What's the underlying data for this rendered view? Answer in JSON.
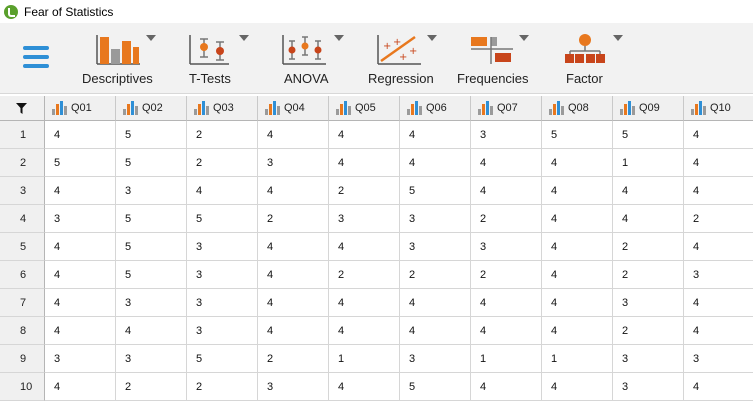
{
  "window": {
    "title": "Fear of Statistics"
  },
  "toolbar": {
    "menu_icon": "hamburger-menu-icon",
    "tools": [
      {
        "label": "Descriptives",
        "icon": "bar-chart-icon"
      },
      {
        "label": "T-Tests",
        "icon": "ttest-icon"
      },
      {
        "label": "ANOVA",
        "icon": "anova-icon"
      },
      {
        "label": "Regression",
        "icon": "regression-icon"
      },
      {
        "label": "Frequencies",
        "icon": "frequencies-icon"
      },
      {
        "label": "Factor",
        "icon": "factor-icon"
      }
    ]
  },
  "colors": {
    "accent_blue": "#2e8fd6",
    "accent_orange": "#e8781e",
    "accent_red": "#c8451b"
  },
  "grid": {
    "filter_icon": "filter-icon",
    "columns": [
      "Q01",
      "Q02",
      "Q03",
      "Q04",
      "Q05",
      "Q06",
      "Q07",
      "Q08",
      "Q09",
      "Q10"
    ],
    "column_type_icon": "nominal-bars-icon",
    "rows": [
      {
        "n": "1",
        "values": [
          "4",
          "5",
          "2",
          "4",
          "4",
          "4",
          "3",
          "5",
          "5",
          "4"
        ]
      },
      {
        "n": "2",
        "values": [
          "5",
          "5",
          "2",
          "3",
          "4",
          "4",
          "4",
          "4",
          "1",
          "4"
        ]
      },
      {
        "n": "3",
        "values": [
          "4",
          "3",
          "4",
          "4",
          "2",
          "5",
          "4",
          "4",
          "4",
          "4"
        ]
      },
      {
        "n": "4",
        "values": [
          "3",
          "5",
          "5",
          "2",
          "3",
          "3",
          "2",
          "4",
          "4",
          "2"
        ]
      },
      {
        "n": "5",
        "values": [
          "4",
          "5",
          "3",
          "4",
          "4",
          "3",
          "3",
          "4",
          "2",
          "4"
        ]
      },
      {
        "n": "6",
        "values": [
          "4",
          "5",
          "3",
          "4",
          "2",
          "2",
          "2",
          "4",
          "2",
          "3"
        ]
      },
      {
        "n": "7",
        "values": [
          "4",
          "3",
          "3",
          "4",
          "4",
          "4",
          "4",
          "4",
          "3",
          "4"
        ]
      },
      {
        "n": "8",
        "values": [
          "4",
          "4",
          "3",
          "4",
          "4",
          "4",
          "4",
          "4",
          "2",
          "4"
        ]
      },
      {
        "n": "9",
        "values": [
          "3",
          "3",
          "5",
          "2",
          "1",
          "3",
          "1",
          "1",
          "3",
          "3"
        ]
      },
      {
        "n": "10",
        "values": [
          "4",
          "2",
          "2",
          "3",
          "4",
          "5",
          "4",
          "4",
          "3",
          "4"
        ]
      }
    ]
  }
}
